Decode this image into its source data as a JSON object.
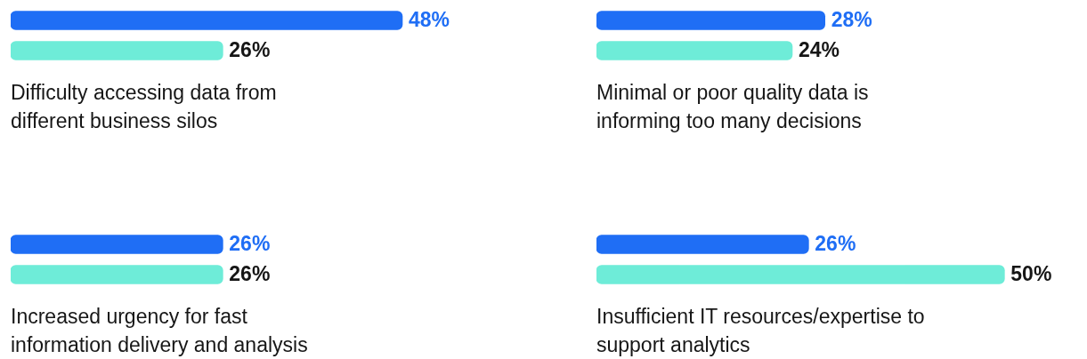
{
  "chart_data": [
    {
      "type": "bar",
      "orientation": "horizontal",
      "title": "Difficulty accessing data from different business silos",
      "categories": [
        null,
        null
      ],
      "values": [
        48,
        26
      ],
      "colors": [
        "#1f6ef5",
        "#6eecd8"
      ],
      "value_labels": [
        "48%",
        "26%"
      ]
    },
    {
      "type": "bar",
      "orientation": "horizontal",
      "title": "Minimal or poor quality data is informing too many decisions",
      "categories": [
        null,
        null
      ],
      "values": [
        28,
        24
      ],
      "colors": [
        "#1f6ef5",
        "#6eecd8"
      ],
      "value_labels": [
        "28%",
        "24%"
      ]
    },
    {
      "type": "bar",
      "orientation": "horizontal",
      "title": "Increased urgency for fast information delivery and analysis",
      "categories": [
        null,
        null
      ],
      "values": [
        26,
        26
      ],
      "colors": [
        "#1f6ef5",
        "#6eecd8"
      ],
      "value_labels": [
        "26%",
        "26%"
      ]
    },
    {
      "type": "bar",
      "orientation": "horizontal",
      "title": "Insufficient IT resources/expertise to support analytics",
      "categories": [
        null,
        null
      ],
      "values": [
        26,
        50
      ],
      "colors": [
        "#1f6ef5",
        "#6eecd8"
      ],
      "value_labels": [
        "26%",
        "50%"
      ]
    }
  ]
}
